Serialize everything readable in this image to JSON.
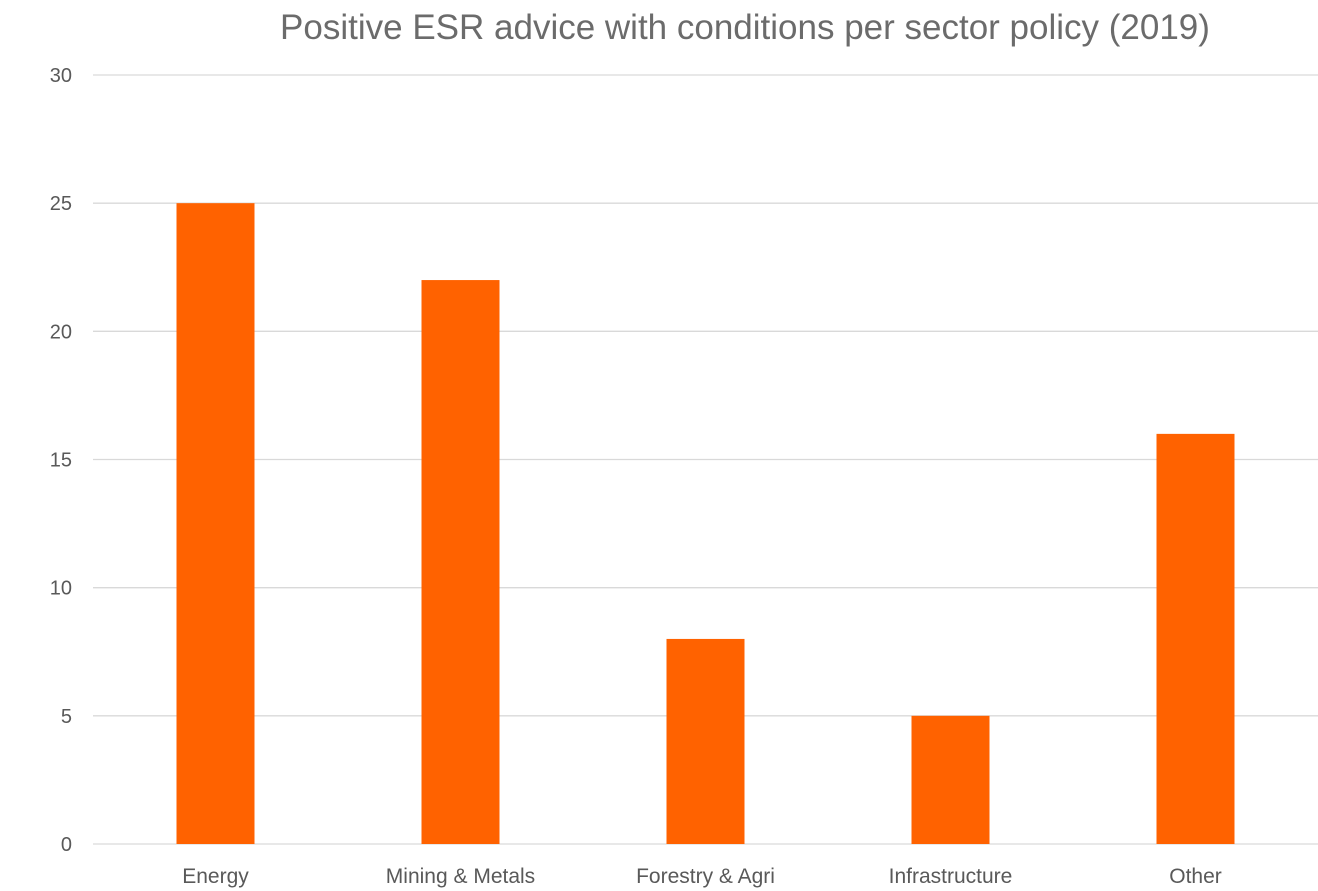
{
  "chart_data": {
    "type": "bar",
    "title": "Positive ESR advice with conditions per sector policy (2019)",
    "categories": [
      "Energy",
      "Mining & Metals",
      "Forestry & Agri",
      "Infrastructure",
      "Other"
    ],
    "values": [
      25,
      22,
      8,
      5,
      16
    ],
    "ylim": [
      0,
      30
    ],
    "yticks": [
      0,
      5,
      10,
      15,
      20,
      25,
      30
    ],
    "grid": true,
    "legend": "none",
    "xlabel": "",
    "ylabel": "",
    "colors": {
      "bar": "#ff6200",
      "grid": "#d9d9d9",
      "tick_text": "#595959",
      "title_text": "#6b6b6b"
    }
  }
}
